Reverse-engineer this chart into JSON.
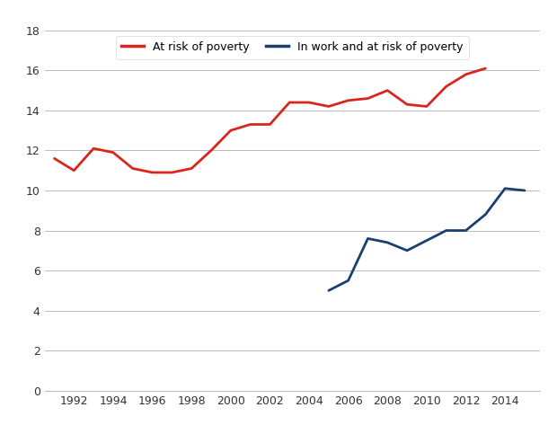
{
  "red_line": {
    "x": [
      1991,
      1992,
      1993,
      1994,
      1995,
      1996,
      1997,
      1998,
      1999,
      2000,
      2001,
      2002,
      2003,
      2004,
      2005,
      2006,
      2007,
      2008,
      2009,
      2010,
      2011,
      2012,
      2013
    ],
    "y": [
      11.6,
      11.0,
      12.1,
      11.9,
      11.1,
      10.9,
      10.9,
      11.1,
      12.0,
      13.0,
      13.3,
      13.3,
      14.4,
      14.4,
      14.2,
      14.5,
      14.6,
      15.0,
      14.3,
      14.2,
      15.2,
      15.8,
      16.1
    ]
  },
  "blue_line": {
    "x": [
      2005,
      2006,
      2007,
      2008,
      2009,
      2010,
      2011,
      2012,
      2013,
      2014,
      2015
    ],
    "y": [
      5.0,
      5.5,
      7.6,
      7.4,
      7.0,
      7.5,
      8.0,
      8.0,
      8.8,
      10.1,
      10.0
    ]
  },
  "red_color": "#d9261c",
  "blue_color": "#1a3f6f",
  "legend_label_red": "At risk of poverty",
  "legend_label_blue": "In work and at risk of poverty",
  "ylim": [
    0,
    18
  ],
  "yticks": [
    0,
    2,
    4,
    6,
    8,
    10,
    12,
    14,
    16,
    18
  ],
  "xticks": [
    1992,
    1994,
    1996,
    1998,
    2000,
    2002,
    2004,
    2006,
    2008,
    2010,
    2012,
    2014
  ],
  "xlim": [
    1990.5,
    2015.8
  ],
  "line_width": 2.0,
  "background_color": "#ffffff",
  "grid_color": "#bbbbbb"
}
